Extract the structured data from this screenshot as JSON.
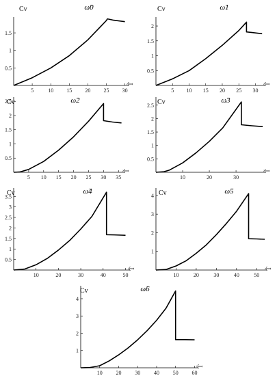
{
  "chart_data": [
    {
      "type": "line",
      "title": "ω̃0",
      "ylabel": "Cv",
      "xlabel": "T̃",
      "xticks": [
        5,
        10,
        15,
        20,
        25,
        30
      ],
      "yticks": [
        0.5,
        1.0,
        1.5
      ],
      "xlim": [
        0,
        31
      ],
      "ylim": [
        0,
        1.95
      ],
      "series": [
        {
          "x": [
            0,
            5,
            10,
            15,
            20,
            25,
            25.3,
            27,
            30
          ],
          "y": [
            0,
            0.22,
            0.5,
            0.85,
            1.3,
            1.85,
            1.9,
            1.86,
            1.82
          ]
        }
      ]
    },
    {
      "type": "line",
      "title": "ω̃1",
      "ylabel": "Cv",
      "xlabel": "T̃",
      "xticks": [
        5,
        10,
        15,
        20,
        25,
        30
      ],
      "yticks": [
        0.5,
        1.0,
        1.5,
        2.0
      ],
      "xlim": [
        0,
        33
      ],
      "ylim": [
        0,
        2.3
      ],
      "series": [
        {
          "x": [
            0,
            5,
            10,
            15,
            20,
            25,
            27.3,
            27.3,
            29,
            32
          ],
          "y": [
            0,
            0.22,
            0.5,
            0.9,
            1.35,
            1.85,
            2.13,
            1.8,
            1.78,
            1.74
          ]
        }
      ]
    },
    {
      "type": "line",
      "title": "ω̃2",
      "ylabel": "Cv",
      "xlabel": "T̃",
      "xticks": [
        5,
        10,
        15,
        20,
        25,
        30,
        35
      ],
      "yticks": [
        0.5,
        1.0,
        1.5,
        2.0,
        2.5
      ],
      "xlim": [
        0,
        37
      ],
      "ylim": [
        0,
        2.65
      ],
      "series": [
        {
          "x": [
            0,
            2,
            5,
            10,
            15,
            20,
            25,
            30,
            30,
            33,
            36
          ],
          "y": [
            0,
            0.01,
            0.1,
            0.38,
            0.78,
            1.25,
            1.8,
            2.42,
            1.82,
            1.77,
            1.74
          ]
        }
      ]
    },
    {
      "type": "line",
      "title": "ω̃3",
      "ylabel": "Cv",
      "xlabel": "T̃",
      "xticks": [
        10,
        20,
        30
      ],
      "yticks": [
        0.5,
        1.0,
        1.5,
        2.0,
        2.5
      ],
      "xlim": [
        0,
        41
      ],
      "ylim": [
        0,
        2.8
      ],
      "series": [
        {
          "x": [
            0,
            3,
            5,
            10,
            15,
            20,
            25,
            32,
            32,
            36,
            40
          ],
          "y": [
            0,
            0.02,
            0.08,
            0.35,
            0.72,
            1.15,
            1.65,
            2.62,
            1.77,
            1.73,
            1.7
          ]
        }
      ]
    },
    {
      "type": "line",
      "title": "ω̃4",
      "ylabel": "Cv",
      "xlabel": "T̃",
      "xticks": [
        10,
        20,
        30,
        40,
        50
      ],
      "yticks": [
        0.5,
        1.0,
        1.5,
        2.0,
        2.5,
        3.0,
        3.5
      ],
      "xlim": [
        0,
        52
      ],
      "ylim": [
        0,
        3.9
      ],
      "series": [
        {
          "x": [
            0,
            5,
            10,
            15,
            20,
            25,
            30,
            35,
            41.5,
            41.5,
            45,
            50
          ],
          "y": [
            0,
            0.05,
            0.25,
            0.55,
            0.95,
            1.4,
            1.95,
            2.55,
            3.7,
            1.68,
            1.67,
            1.65
          ]
        }
      ]
    },
    {
      "type": "line",
      "title": "ω̃5",
      "ylabel": "Cv",
      "xlabel": "T̃",
      "xticks": [
        10,
        20,
        30,
        40,
        50
      ],
      "yticks": [
        1,
        2,
        3,
        4
      ],
      "xlim": [
        0,
        55
      ],
      "ylim": [
        0,
        4.4
      ],
      "series": [
        {
          "x": [
            0,
            5,
            10,
            15,
            20,
            25,
            30,
            35,
            40,
            46,
            46,
            50,
            54
          ],
          "y": [
            0,
            0.03,
            0.22,
            0.5,
            0.9,
            1.35,
            1.9,
            2.5,
            3.15,
            4.1,
            1.68,
            1.67,
            1.65
          ]
        }
      ]
    },
    {
      "type": "line",
      "title": "ω̃6",
      "ylabel": "Cv",
      "xlabel": "T̃",
      "xticks": [
        10,
        20,
        30,
        40,
        50,
        60
      ],
      "yticks": [
        1,
        2,
        3,
        4
      ],
      "xlim": [
        0,
        62
      ],
      "ylim": [
        0,
        4.75
      ],
      "series": [
        {
          "x": [
            0,
            5,
            10,
            15,
            20,
            25,
            30,
            35,
            40,
            45,
            50,
            50,
            55,
            60
          ],
          "y": [
            0,
            0.02,
            0.12,
            0.4,
            0.75,
            1.15,
            1.62,
            2.15,
            2.75,
            3.45,
            4.45,
            1.63,
            1.63,
            1.62
          ]
        }
      ]
    }
  ]
}
